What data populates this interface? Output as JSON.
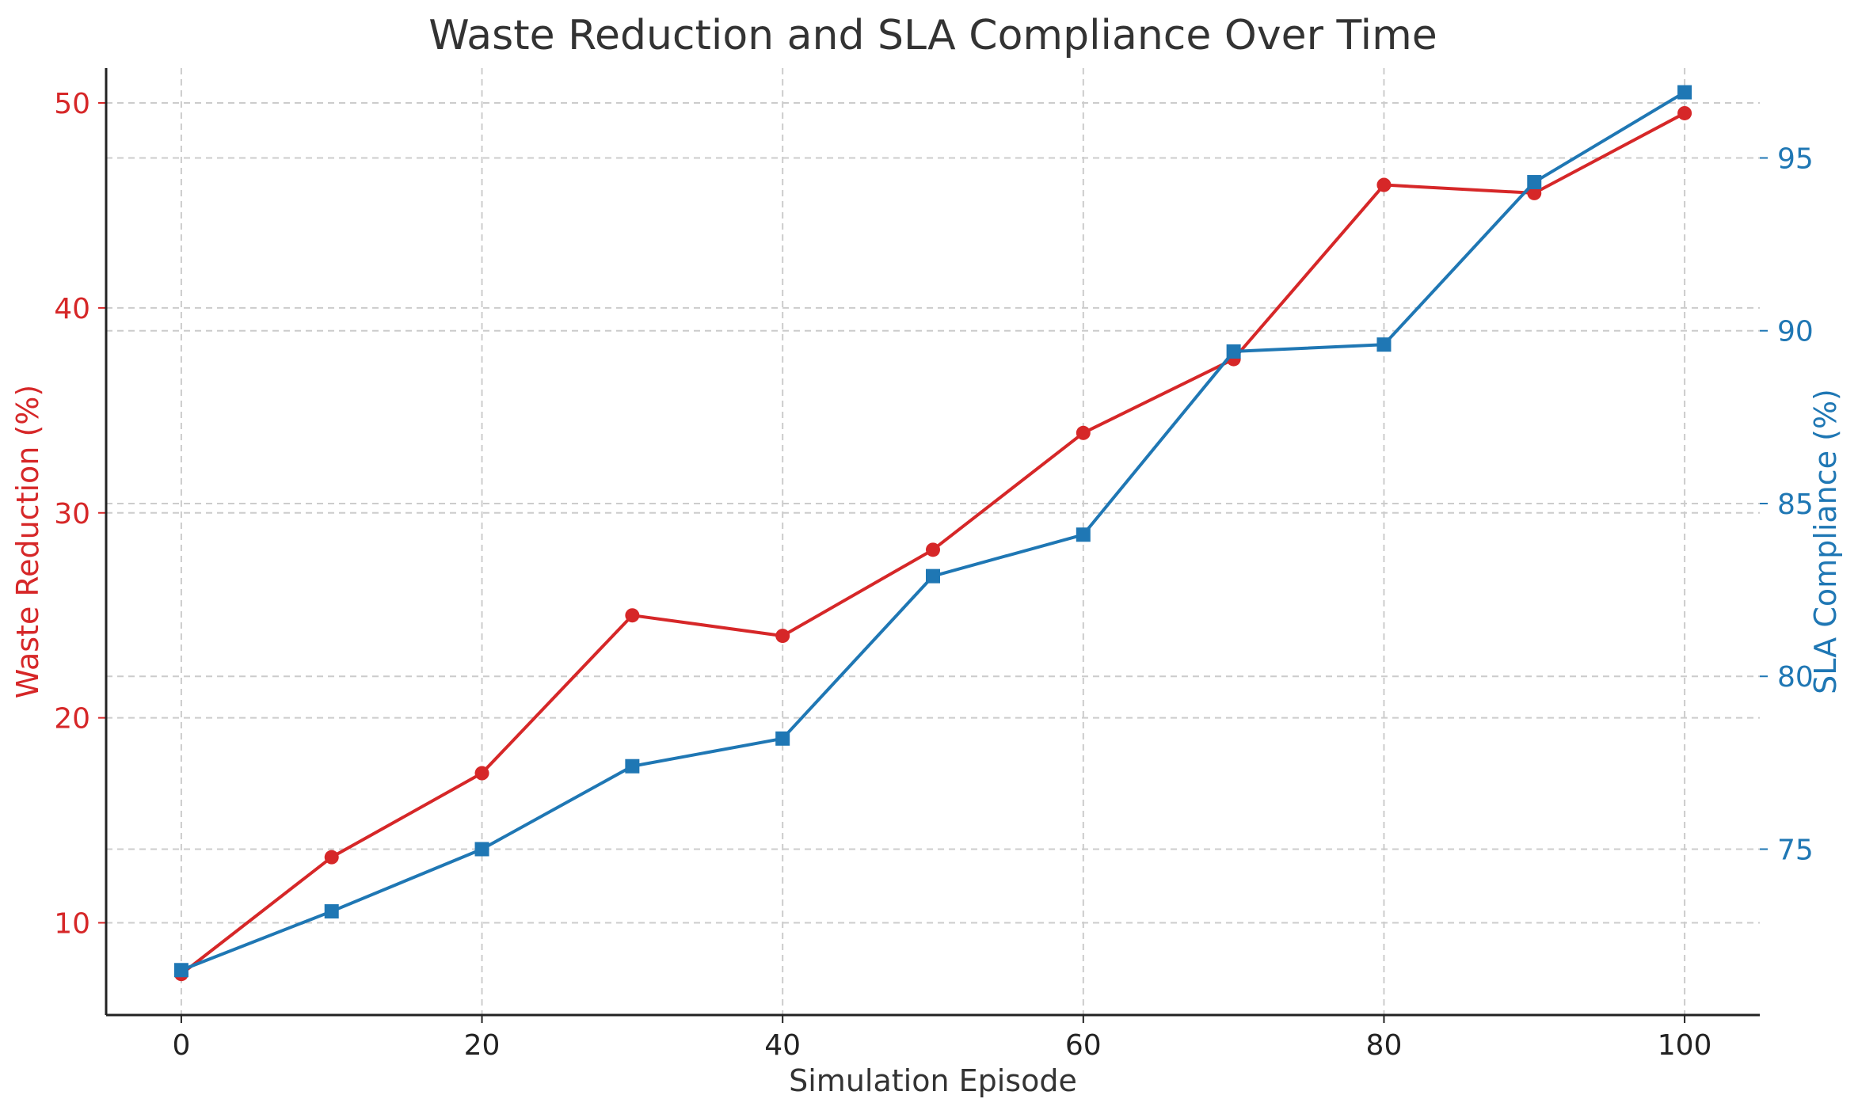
{
  "chart_data": {
    "type": "line",
    "title": "Waste Reduction and SLA Compliance Over Time",
    "xlabel": "Simulation Episode",
    "ylabel_left": "Waste Reduction (%)",
    "ylabel_right": "SLA Compliance (%)",
    "x": [
      0,
      10,
      20,
      30,
      40,
      50,
      60,
      70,
      80,
      90,
      100
    ],
    "xlim": [
      -5,
      105
    ],
    "x_ticks": [
      0,
      20,
      40,
      60,
      80,
      100
    ],
    "grid": true,
    "series": [
      {
        "axis": "left",
        "color": "#d62728",
        "marker": "circle",
        "values": [
          7.5,
          13.2,
          17.3,
          25.0,
          24.0,
          28.2,
          33.9,
          37.5,
          46.0,
          45.6,
          49.5
        ]
      },
      {
        "axis": "right",
        "color": "#1f77b4",
        "marker": "square",
        "values": [
          71.5,
          73.2,
          75.0,
          77.4,
          78.2,
          82.9,
          84.1,
          89.4,
          89.6,
          94.3,
          96.9
        ]
      }
    ],
    "y_left": {
      "ylim": [
        5.5,
        51.7
      ],
      "ticks": [
        10,
        20,
        30,
        40,
        50
      ],
      "color": "#d62728"
    },
    "y_right": {
      "ylim": [
        70.2,
        97.6
      ],
      "ticks": [
        75,
        80,
        85,
        90,
        95
      ],
      "color": "#1f77b4"
    }
  }
}
